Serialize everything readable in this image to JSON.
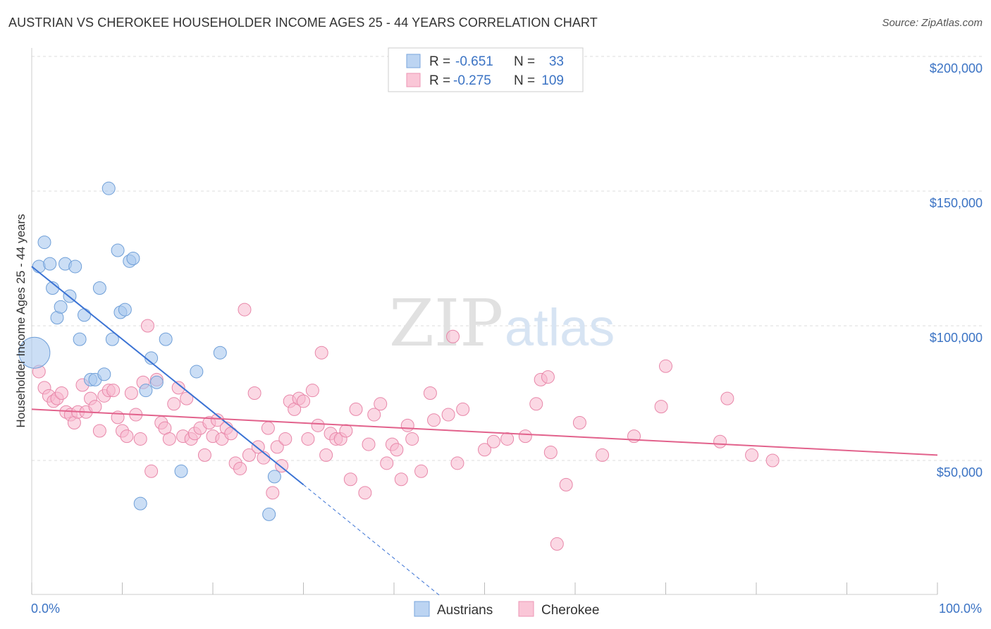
{
  "title": "AUSTRIAN VS CHEROKEE HOUSEHOLDER INCOME AGES 25 - 44 YEARS CORRELATION CHART",
  "source": "Source: ZipAtlas.com",
  "watermark": {
    "zip": "ZIP",
    "atlas": "atlas"
  },
  "chart_data": {
    "type": "scatter",
    "ylabel": "Householder Income Ages 25 - 44 years",
    "xlim": [
      0,
      100
    ],
    "ylim": [
      0,
      210000
    ],
    "y_ticks": [
      50000,
      100000,
      150000,
      200000
    ],
    "y_tick_labels": [
      "$50,000",
      "$100,000",
      "$150,000",
      "$200,000"
    ],
    "x_tick_labels": [
      "0.0%",
      "100.0%"
    ],
    "grid": true,
    "legend": {
      "placement": "top-center",
      "rows": [
        {
          "r_label": "R =",
          "r_value": "-0.651",
          "n_label": "N =",
          "n_value": "33"
        },
        {
          "r_label": "R =",
          "r_value": "-0.275",
          "n_label": "N =",
          "n_value": "109"
        }
      ]
    },
    "series": [
      {
        "name": "Austrians",
        "color": "#a9c8ee",
        "stroke": "#6f9fd8",
        "trend_color": "#3b73d4",
        "trend": {
          "x0": 0,
          "y0": 122000,
          "x1": 30,
          "y1": 41000,
          "dash_to_x": 45,
          "dash_to_y": 0
        },
        "points": [
          [
            0.3,
            90000
          ],
          [
            0.8,
            122000
          ],
          [
            1.4,
            131000
          ],
          [
            2.0,
            123000
          ],
          [
            2.3,
            114000
          ],
          [
            2.8,
            103000
          ],
          [
            3.2,
            107000
          ],
          [
            3.7,
            123000
          ],
          [
            4.2,
            111000
          ],
          [
            4.8,
            122000
          ],
          [
            5.3,
            95000
          ],
          [
            5.8,
            104000
          ],
          [
            6.5,
            80000
          ],
          [
            7.0,
            80000
          ],
          [
            7.5,
            114000
          ],
          [
            8.0,
            82000
          ],
          [
            8.5,
            151000
          ],
          [
            8.9,
            95000
          ],
          [
            9.5,
            128000
          ],
          [
            9.8,
            105000
          ],
          [
            10.3,
            106000
          ],
          [
            10.8,
            124000
          ],
          [
            11.2,
            125000
          ],
          [
            12.0,
            34000
          ],
          [
            12.6,
            76000
          ],
          [
            13.2,
            88000
          ],
          [
            13.8,
            79000
          ],
          [
            14.8,
            95000
          ],
          [
            16.5,
            46000
          ],
          [
            18.2,
            83000
          ],
          [
            20.8,
            90000
          ],
          [
            26.8,
            44000
          ],
          [
            26.2,
            30000
          ]
        ]
      },
      {
        "name": "Cherokee",
        "color": "#f7b8cd",
        "stroke": "#e887a9",
        "trend_color": "#e2628c",
        "trend": {
          "x0": 0,
          "y0": 69000,
          "x1": 100,
          "y1": 52000
        },
        "points": [
          [
            0.8,
            83000
          ],
          [
            1.4,
            77000
          ],
          [
            1.9,
            74000
          ],
          [
            2.4,
            72000
          ],
          [
            2.8,
            73000
          ],
          [
            3.3,
            75000
          ],
          [
            3.8,
            68000
          ],
          [
            4.3,
            67000
          ],
          [
            4.7,
            64000
          ],
          [
            5.1,
            68000
          ],
          [
            5.6,
            78000
          ],
          [
            6.0,
            68000
          ],
          [
            6.5,
            73000
          ],
          [
            7.0,
            70000
          ],
          [
            7.5,
            61000
          ],
          [
            8.0,
            74000
          ],
          [
            8.5,
            76000
          ],
          [
            9.0,
            76000
          ],
          [
            9.5,
            66000
          ],
          [
            10.0,
            61000
          ],
          [
            10.5,
            59000
          ],
          [
            11.0,
            75000
          ],
          [
            11.5,
            67000
          ],
          [
            12.0,
            58000
          ],
          [
            12.3,
            79000
          ],
          [
            12.8,
            100000
          ],
          [
            13.2,
            46000
          ],
          [
            13.8,
            80000
          ],
          [
            14.3,
            64000
          ],
          [
            14.7,
            62000
          ],
          [
            15.2,
            58000
          ],
          [
            15.7,
            71000
          ],
          [
            16.2,
            77000
          ],
          [
            16.7,
            59000
          ],
          [
            17.1,
            73000
          ],
          [
            17.6,
            58000
          ],
          [
            18.0,
            60000
          ],
          [
            18.6,
            62000
          ],
          [
            19.1,
            52000
          ],
          [
            19.6,
            64000
          ],
          [
            20.0,
            59000
          ],
          [
            20.5,
            65000
          ],
          [
            21.0,
            58000
          ],
          [
            21.5,
            62000
          ],
          [
            22.0,
            60000
          ],
          [
            22.5,
            49000
          ],
          [
            23.0,
            47000
          ],
          [
            23.5,
            106000
          ],
          [
            24.0,
            52000
          ],
          [
            24.6,
            75000
          ],
          [
            25.0,
            55000
          ],
          [
            25.6,
            51000
          ],
          [
            26.1,
            62000
          ],
          [
            26.6,
            38000
          ],
          [
            27.1,
            55000
          ],
          [
            27.6,
            48000
          ],
          [
            28.0,
            58000
          ],
          [
            28.5,
            72000
          ],
          [
            29.0,
            69000
          ],
          [
            29.5,
            73000
          ],
          [
            30.0,
            72000
          ],
          [
            30.5,
            58000
          ],
          [
            31.0,
            76000
          ],
          [
            31.6,
            63000
          ],
          [
            32.0,
            90000
          ],
          [
            32.5,
            52000
          ],
          [
            33.0,
            60000
          ],
          [
            33.6,
            58000
          ],
          [
            34.1,
            58000
          ],
          [
            34.7,
            61000
          ],
          [
            35.2,
            43000
          ],
          [
            35.8,
            69000
          ],
          [
            36.8,
            38000
          ],
          [
            37.2,
            56000
          ],
          [
            37.8,
            67000
          ],
          [
            38.5,
            71000
          ],
          [
            39.2,
            49000
          ],
          [
            39.8,
            56000
          ],
          [
            40.3,
            54000
          ],
          [
            40.8,
            43000
          ],
          [
            41.5,
            63000
          ],
          [
            42.0,
            58000
          ],
          [
            43.0,
            46000
          ],
          [
            44.0,
            75000
          ],
          [
            44.4,
            65000
          ],
          [
            46.0,
            67000
          ],
          [
            46.5,
            96000
          ],
          [
            47.0,
            49000
          ],
          [
            47.6,
            69000
          ],
          [
            50.0,
            54000
          ],
          [
            51.0,
            57000
          ],
          [
            52.5,
            58000
          ],
          [
            54.5,
            59000
          ],
          [
            55.7,
            71000
          ],
          [
            56.2,
            80000
          ],
          [
            57.0,
            81000
          ],
          [
            57.3,
            53000
          ],
          [
            58.0,
            19000
          ],
          [
            59.0,
            41000
          ],
          [
            60.5,
            64000
          ],
          [
            63.0,
            52000
          ],
          [
            66.5,
            59000
          ],
          [
            69.5,
            70000
          ],
          [
            70.0,
            85000
          ],
          [
            76.0,
            57000
          ],
          [
            76.8,
            73000
          ],
          [
            79.5,
            52000
          ],
          [
            81.8,
            50000
          ],
          [
            0.5,
            90000
          ]
        ]
      }
    ]
  }
}
